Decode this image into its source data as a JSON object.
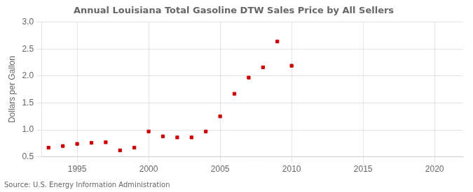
{
  "chart_data": {
    "type": "scatter",
    "title": "Annual Louisiana Total Gasoline DTW Sales Price by All Sellers",
    "ylabel": "Dollars per Gallon",
    "annotations": [
      "Source: U.S. Energy Information Administration"
    ],
    "x": [
      1993,
      1994,
      1995,
      1996,
      1997,
      1998,
      1999,
      2000,
      2001,
      2002,
      2003,
      2004,
      2005,
      2006,
      2007,
      2008,
      2009,
      2010
    ],
    "values": [
      0.67,
      0.7,
      0.74,
      0.76,
      0.77,
      0.62,
      0.67,
      0.97,
      0.88,
      0.86,
      0.86,
      0.97,
      1.25,
      1.67,
      1.97,
      2.16,
      2.64,
      2.19
    ],
    "color": "#cc0000",
    "marker": "square",
    "xlim": [
      1992.5,
      2022
    ],
    "ylim": [
      0.5,
      3.0
    ],
    "xticks": [
      1995,
      2000,
      2005,
      2010,
      2015,
      2020
    ],
    "yticks": [
      0.5,
      {
        "value": 1,
        "label": "1.0"
      },
      1.5,
      {
        "value": 2,
        "label": "2.0"
      },
      2.5,
      {
        "value": 3,
        "label": "3.0"
      }
    ],
    "grid": true
  }
}
